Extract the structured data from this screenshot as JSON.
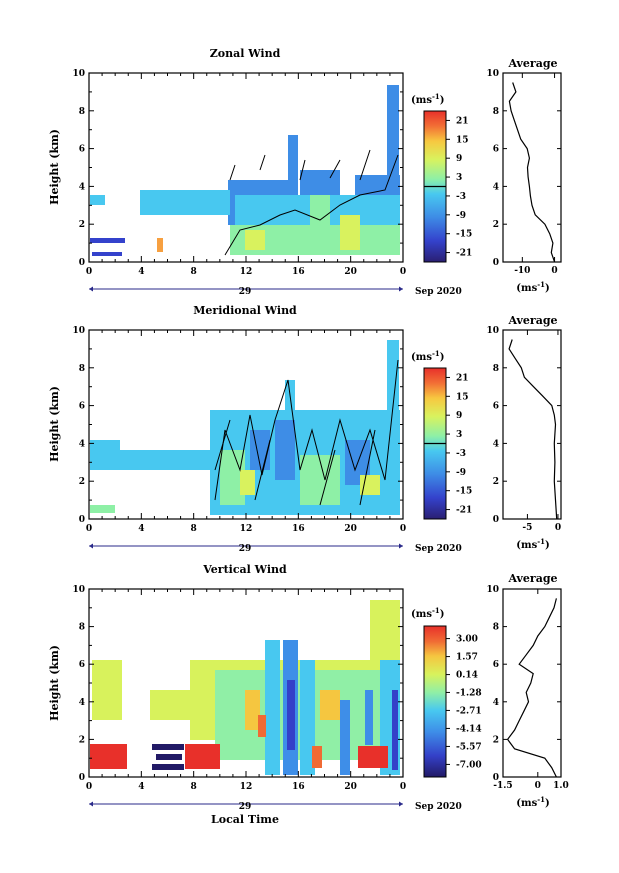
{
  "chart_data": [
    {
      "type": "heatmap",
      "title": "Zonal Wind",
      "ylabel": "Height (km)",
      "ylim": [
        0,
        10
      ],
      "y_ticks": [
        "0",
        "2",
        "4",
        "6",
        "8",
        "10"
      ],
      "x_ticks": [
        "0",
        "4",
        "8",
        "12",
        "16",
        "20",
        "0"
      ],
      "xlim_hours": [
        0,
        24
      ],
      "date_label": "29",
      "month_label": "Sep 2020",
      "colorbar": {
        "unit_prefix": "(ms",
        "unit_exp": "-1",
        "unit_suffix": ")",
        "ticks": [
          "21",
          "15",
          "9",
          "3",
          "-3",
          "-9",
          "-15",
          "-21"
        ],
        "range": [
          -24,
          24
        ],
        "contour_at": 0
      },
      "average": {
        "title": "Average",
        "xlabel_prefix": "(ms",
        "xlabel_exp": "-1",
        "xlabel_suffix": ")",
        "x_ticks": [
          "-10",
          "0"
        ],
        "x_tick_values": [
          -10,
          0
        ],
        "xlim": [
          -16,
          2
        ],
        "ylim": [
          0,
          10
        ],
        "y_ticks": [
          "0",
          "2",
          "4",
          "6",
          "8",
          "10"
        ],
        "profile": [
          [
            0.0,
            0.0
          ],
          [
            0.5,
            -1.0
          ],
          [
            1.0,
            -0.5
          ],
          [
            1.5,
            -1.5
          ],
          [
            2.0,
            -3.0
          ],
          [
            2.5,
            -6.0
          ],
          [
            3.0,
            -7.0
          ],
          [
            3.5,
            -7.5
          ],
          [
            4.0,
            -7.8
          ],
          [
            4.5,
            -8.2
          ],
          [
            5.0,
            -8.4
          ],
          [
            5.5,
            -7.8
          ],
          [
            6.0,
            -8.5
          ],
          [
            6.5,
            -10.5
          ],
          [
            7.0,
            -11.5
          ],
          [
            7.5,
            -12.5
          ],
          [
            8.0,
            -13.5
          ],
          [
            8.5,
            -14.0
          ],
          [
            9.0,
            -12.0
          ],
          [
            9.5,
            -13.0
          ]
        ]
      }
    },
    {
      "type": "heatmap",
      "title": "Meridional Wind",
      "ylabel": "Height (km)",
      "ylim": [
        0,
        10
      ],
      "y_ticks": [
        "0",
        "2",
        "4",
        "6",
        "8",
        "10"
      ],
      "x_ticks": [
        "0",
        "4",
        "8",
        "12",
        "16",
        "20",
        "0"
      ],
      "xlim_hours": [
        0,
        24
      ],
      "date_label": "29",
      "month_label": "Sep 2020",
      "colorbar": {
        "unit_prefix": "(ms",
        "unit_exp": "-1",
        "unit_suffix": ")",
        "ticks": [
          "21",
          "15",
          "9",
          "3",
          "-3",
          "-9",
          "-15",
          "-21"
        ],
        "range": [
          -24,
          24
        ],
        "contour_at": 0
      },
      "average": {
        "title": "Average",
        "xlabel_prefix": "(ms",
        "xlabel_exp": "-1",
        "xlabel_suffix": ")",
        "x_ticks": [
          "-5",
          "0"
        ],
        "x_tick_values": [
          -5,
          0
        ],
        "xlim": [
          -9,
          0.5
        ],
        "ylim": [
          0,
          10
        ],
        "y_ticks": [
          "0",
          "2",
          "4",
          "6",
          "8",
          "10"
        ],
        "profile": [
          [
            0.0,
            -0.2
          ],
          [
            1.0,
            -0.4
          ],
          [
            2.0,
            -0.6
          ],
          [
            3.0,
            -0.5
          ],
          [
            4.0,
            -0.6
          ],
          [
            5.0,
            -0.4
          ],
          [
            5.5,
            -0.6
          ],
          [
            6.0,
            -1.0
          ],
          [
            6.5,
            -2.5
          ],
          [
            7.0,
            -4.0
          ],
          [
            7.5,
            -5.5
          ],
          [
            8.0,
            -6.0
          ],
          [
            8.5,
            -7.0
          ],
          [
            9.0,
            -8.0
          ],
          [
            9.5,
            -7.5
          ]
        ]
      }
    },
    {
      "type": "heatmap",
      "title": "Vertical Wind",
      "ylabel": "Height (km)",
      "xlabel": "Local Time",
      "ylim": [
        0,
        10
      ],
      "y_ticks": [
        "0",
        "2",
        "4",
        "6",
        "8",
        "10"
      ],
      "x_ticks": [
        "0",
        "4",
        "8",
        "12",
        "16",
        "20",
        "0"
      ],
      "xlim_hours": [
        0,
        24
      ],
      "date_label": "29",
      "month_label": "Sep 2020",
      "colorbar": {
        "unit_prefix": "(ms",
        "unit_exp": "-1",
        "unit_suffix": ")",
        "ticks": [
          "3.00",
          "1.57",
          "0.14",
          "-1.28",
          "-2.71",
          "-4.14",
          "-5.57",
          "-7.00"
        ],
        "range": [
          -8,
          4
        ]
      },
      "average": {
        "title": "Average",
        "xlabel_prefix": "(ms",
        "xlabel_exp": "-1",
        "xlabel_suffix": ")",
        "x_ticks": [
          "-1.5",
          "0",
          "1.0"
        ],
        "x_tick_values": [
          -1.5,
          0,
          1.0
        ],
        "xlim": [
          -1.5,
          1.0
        ],
        "ylim": [
          0,
          10
        ],
        "y_ticks": [
          "0",
          "2",
          "4",
          "6",
          "8",
          "10"
        ],
        "profile": [
          [
            0.0,
            0.8
          ],
          [
            0.5,
            0.6
          ],
          [
            1.0,
            0.3
          ],
          [
            1.5,
            -1.0
          ],
          [
            2.0,
            -1.3
          ],
          [
            2.5,
            -1.0
          ],
          [
            3.0,
            -0.8
          ],
          [
            3.5,
            -0.6
          ],
          [
            4.0,
            -0.4
          ],
          [
            4.5,
            -0.5
          ],
          [
            5.0,
            -0.3
          ],
          [
            5.5,
            -0.2
          ],
          [
            6.0,
            -0.8
          ],
          [
            6.5,
            -0.5
          ],
          [
            7.0,
            -0.2
          ],
          [
            7.5,
            0.0
          ],
          [
            8.0,
            0.3
          ],
          [
            8.5,
            0.5
          ],
          [
            9.0,
            0.7
          ],
          [
            9.5,
            0.8
          ]
        ]
      }
    }
  ]
}
